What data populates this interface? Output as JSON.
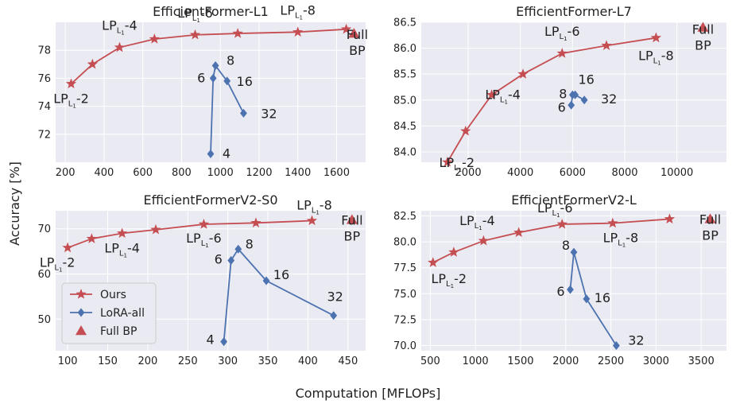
{
  "figure": {
    "xlabel": "Computation [MFLOPs]",
    "ylabel": "Accuracy [%]"
  },
  "legend": {
    "placement": "lower-left of EfficientFormerV2-S0 panel",
    "entries": [
      {
        "name": "Ours",
        "marker": "star",
        "color": "#c44e52"
      },
      {
        "name": "LoRA-all",
        "marker": "diamond",
        "color": "#4c72b0"
      },
      {
        "name": "Full BP",
        "marker": "triangle",
        "color": "#c44e52"
      }
    ]
  },
  "colors": {
    "ours": "#c44e52",
    "lora": "#4c72b0",
    "fullbp": "#c44e52",
    "background": "#eaeaf2"
  },
  "chart_data": [
    {
      "type": "line",
      "title": "EfficientFormer-L1",
      "grid": true,
      "xlim": [
        150,
        1750
      ],
      "ylim": [
        70.0,
        80.0
      ],
      "xticks": [
        200,
        400,
        600,
        800,
        1000,
        1200,
        1400,
        1600
      ],
      "yticks": [
        72,
        74,
        76,
        78
      ],
      "ytick_decimals": 0,
      "series": [
        {
          "name": "Ours",
          "marker": "star",
          "x": [
            230,
            340,
            480,
            660,
            870,
            1090,
            1400,
            1650
          ],
          "y": [
            75.6,
            77.0,
            78.2,
            78.8,
            79.1,
            79.2,
            79.3,
            79.5
          ],
          "labels": [
            {
              "i": 0,
              "text": "LP",
              "sub": "L1",
              "suffix": "-2"
            },
            {
              "i": 2,
              "text": "LP",
              "sub": "L1",
              "suffix": "-4"
            },
            {
              "i": 4,
              "text": "LP",
              "sub": "L1",
              "suffix": "-6"
            },
            {
              "i": 6,
              "text": "LP",
              "sub": "L1",
              "suffix": "-8"
            }
          ]
        },
        {
          "name": "LoRA-all",
          "marker": "diamond",
          "x": [
            950,
            963,
            975,
            1035,
            1120
          ],
          "y": [
            70.6,
            76.0,
            76.9,
            75.8,
            73.5
          ],
          "labels": [
            {
              "i": 0,
              "text": "4"
            },
            {
              "i": 1,
              "text": "6"
            },
            {
              "i": 2,
              "text": "8"
            },
            {
              "i": 3,
              "text": "16"
            },
            {
              "i": 4,
              "text": "32"
            }
          ]
        },
        {
          "name": "Full BP",
          "marker": "triangle",
          "x": [
            1690
          ],
          "y": [
            79.2
          ],
          "labels": [
            {
              "i": 0,
              "text": "Full BP"
            }
          ]
        }
      ]
    },
    {
      "type": "line",
      "title": "EfficientFormer-L7",
      "grid": true,
      "xlim": [
        200,
        11900
      ],
      "ylim": [
        83.8,
        86.5
      ],
      "xticks": [
        2000,
        4000,
        6000,
        8000,
        10000
      ],
      "yticks": [
        84.0,
        84.5,
        85.0,
        85.5,
        86.0,
        86.5
      ],
      "ytick_decimals": 1,
      "series": [
        {
          "name": "Ours",
          "marker": "star",
          "x": [
            1200,
            1900,
            2900,
            4100,
            5600,
            7300,
            9200
          ],
          "y": [
            83.8,
            84.4,
            85.1,
            85.5,
            85.9,
            86.05,
            86.2
          ],
          "labels": [
            {
              "i": 0,
              "text": "LP",
              "sub": "L1",
              "suffix": "-2"
            },
            {
              "i": 2,
              "text": "LP",
              "sub": "L1",
              "suffix": "-4"
            },
            {
              "i": 4,
              "text": "LP",
              "sub": "L1",
              "suffix": "-6"
            },
            {
              "i": 6,
              "text": "LP",
              "sub": "L1",
              "suffix": "-8"
            }
          ]
        },
        {
          "name": "LoRA-all",
          "marker": "diamond",
          "x": [
            5950,
            6000,
            6100,
            6450
          ],
          "y": [
            84.9,
            85.1,
            85.1,
            85.0
          ],
          "labels": [
            {
              "i": 0,
              "text": "6"
            },
            {
              "i": 1,
              "text": "8"
            },
            {
              "i": 2,
              "text": "16"
            },
            {
              "i": 3,
              "text": "32"
            }
          ]
        },
        {
          "name": "Full BP",
          "marker": "triangle",
          "x": [
            11000
          ],
          "y": [
            86.4
          ],
          "labels": [
            {
              "i": 0,
              "text": "Full BP"
            }
          ]
        }
      ]
    },
    {
      "type": "line",
      "title": "EfficientFormerV2-S0",
      "grid": true,
      "xlim": [
        85,
        472
      ],
      "ylim": [
        43.0,
        74.0
      ],
      "xticks": [
        100,
        150,
        200,
        250,
        300,
        350,
        400,
        450
      ],
      "yticks": [
        50,
        60,
        70
      ],
      "ytick_decimals": 0,
      "series": [
        {
          "name": "Ours",
          "marker": "star",
          "x": [
            100,
            130,
            168,
            210,
            270,
            335,
            405
          ],
          "y": [
            65.8,
            67.8,
            69.0,
            69.8,
            71.0,
            71.3,
            71.8
          ],
          "labels": [
            {
              "i": 0,
              "text": "LP",
              "sub": "L1",
              "suffix": "-2"
            },
            {
              "i": 2,
              "text": "LP",
              "sub": "L1",
              "suffix": "-4"
            },
            {
              "i": 4,
              "text": "LP",
              "sub": "L1",
              "suffix": "-6"
            },
            {
              "i": 6,
              "text": "LP",
              "sub": "L1",
              "suffix": "-8"
            }
          ]
        },
        {
          "name": "LoRA-all",
          "marker": "diamond",
          "x": [
            295,
            304,
            313,
            348,
            432
          ],
          "y": [
            45.0,
            63.0,
            65.5,
            58.5,
            50.8
          ],
          "labels": [
            {
              "i": 0,
              "text": "4"
            },
            {
              "i": 1,
              "text": "6"
            },
            {
              "i": 2,
              "text": "8"
            },
            {
              "i": 3,
              "text": "16"
            },
            {
              "i": 4,
              "text": "32"
            }
          ]
        },
        {
          "name": "Full BP",
          "marker": "triangle",
          "x": [
            455
          ],
          "y": [
            72.0
          ],
          "labels": [
            {
              "i": 0,
              "text": "Full BP"
            }
          ]
        }
      ]
    },
    {
      "type": "line",
      "title": "EfficientFormerV2-L",
      "grid": true,
      "xlim": [
        400,
        3780
      ],
      "ylim": [
        69.5,
        83.0
      ],
      "xticks": [
        500,
        1000,
        1500,
        2000,
        2500,
        3000,
        3500
      ],
      "yticks": [
        70.0,
        72.5,
        75.0,
        77.5,
        80.0,
        82.5
      ],
      "ytick_decimals": 1,
      "series": [
        {
          "name": "Ours",
          "marker": "star",
          "x": [
            530,
            760,
            1090,
            1480,
            1960,
            2520,
            3150
          ],
          "y": [
            78.0,
            79.0,
            80.1,
            80.9,
            81.7,
            81.8,
            82.2
          ],
          "labels": [
            {
              "i": 0,
              "text": "LP",
              "sub": "L1",
              "suffix": "-2"
            },
            {
              "i": 2,
              "text": "LP",
              "sub": "L1",
              "suffix": "-4"
            },
            {
              "i": 4,
              "text": "LP",
              "sub": "L1",
              "suffix": "-6"
            },
            {
              "i": 5,
              "text": "LP",
              "sub": "L1",
              "suffix": "-8"
            }
          ]
        },
        {
          "name": "LoRA-all",
          "marker": "diamond",
          "x": [
            2050,
            2090,
            2230,
            2560
          ],
          "y": [
            75.4,
            79.0,
            74.5,
            70.0
          ],
          "labels": [
            {
              "i": 0,
              "text": "6"
            },
            {
              "i": 1,
              "text": "8"
            },
            {
              "i": 2,
              "text": "16"
            },
            {
              "i": 3,
              "text": "32"
            }
          ]
        },
        {
          "name": "Full BP",
          "marker": "triangle",
          "x": [
            3600
          ],
          "y": [
            82.2
          ],
          "labels": [
            {
              "i": 0,
              "text": "Full BP"
            }
          ]
        }
      ]
    }
  ]
}
